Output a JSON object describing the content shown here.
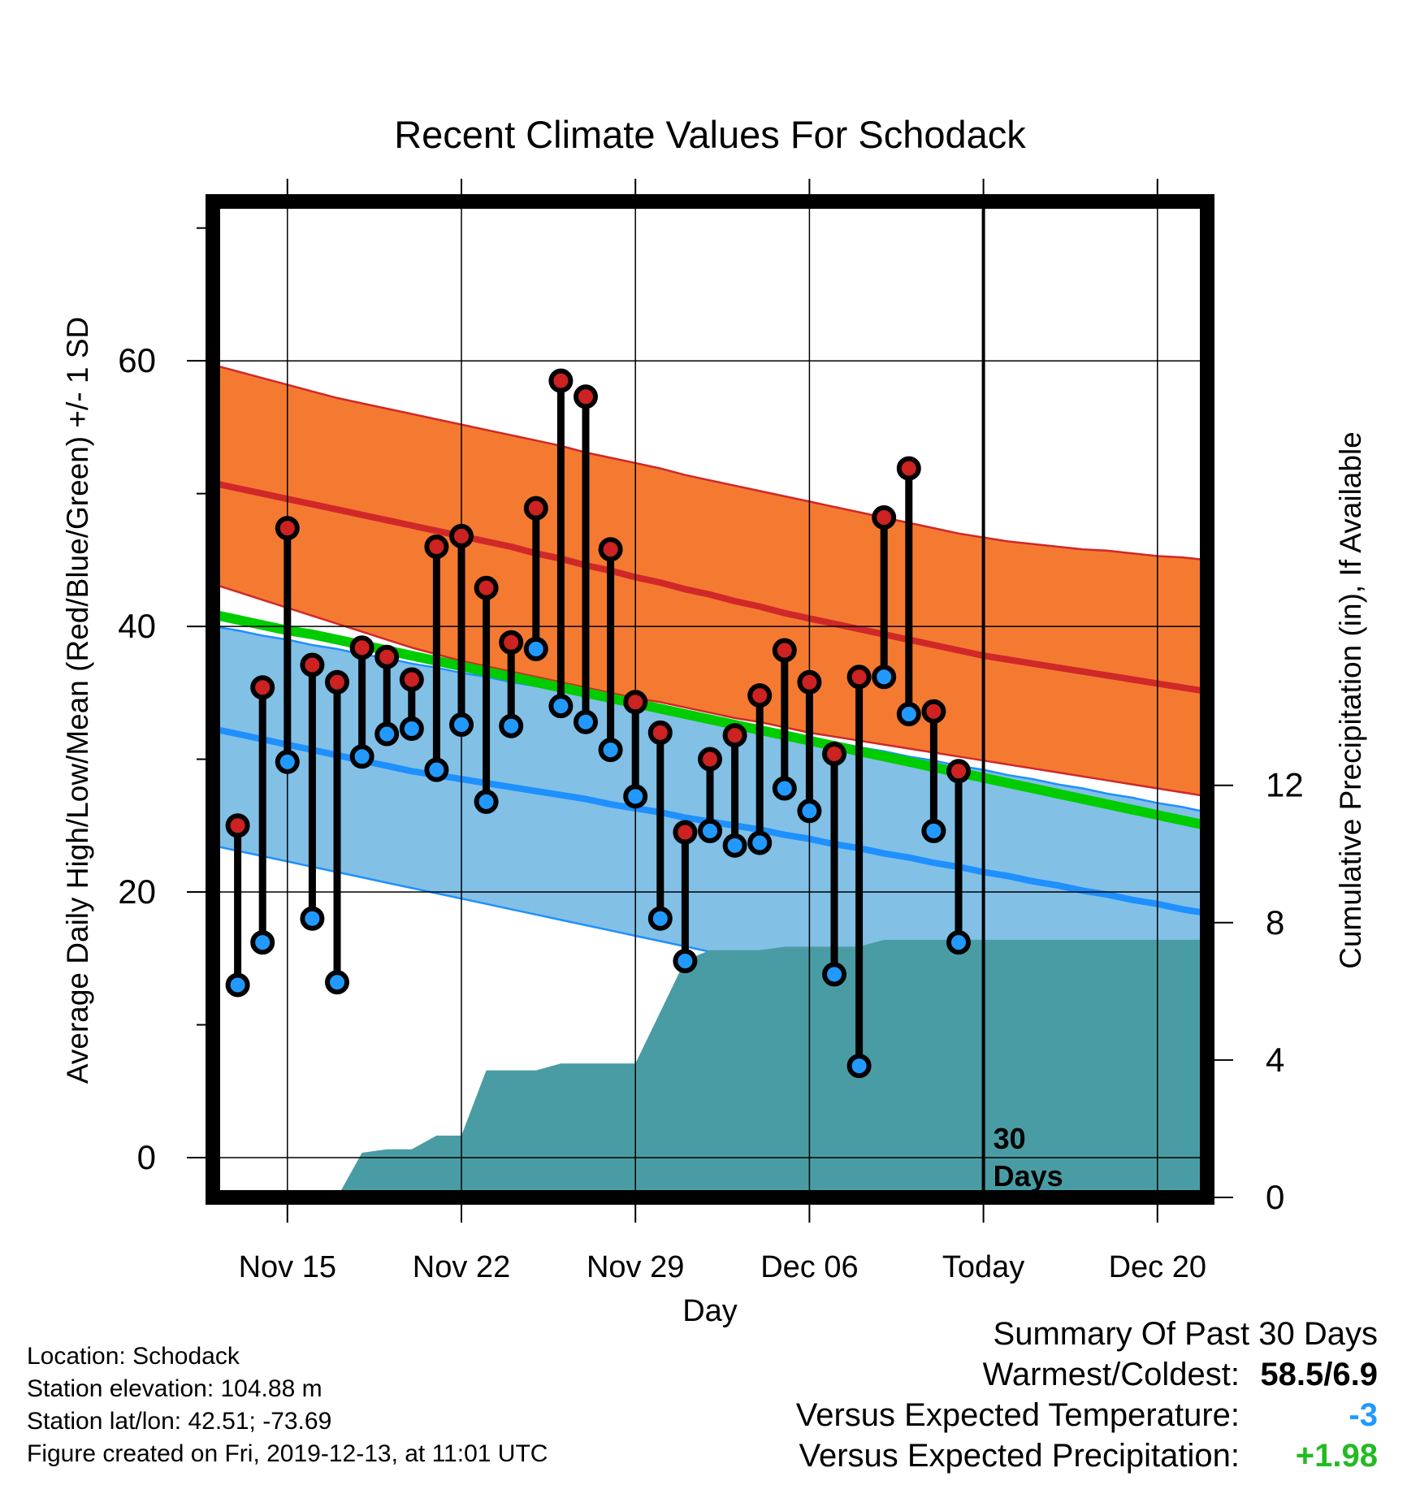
{
  "chart_data": {
    "type": "line",
    "title": "Recent Climate Values For Schodack",
    "xlabel": "Day",
    "ylabel": "Average Daily High/Low/Mean (Red/Blue/Green) +/- 1 SD",
    "y2label": "Cumulative Precipitation (in), If Available",
    "ylim": [
      -3,
      72
    ],
    "y2lim": [
      0,
      29
    ],
    "xlim": [
      "2019-11-12",
      "2019-12-22"
    ],
    "grid": true,
    "x_ticks": [
      "Nov 15",
      "Nov 22",
      "Nov 29",
      "Dec 06",
      "Today",
      "Dec 20"
    ],
    "y_ticks": [
      0,
      20,
      40,
      60
    ],
    "y2_ticks": [
      0,
      4,
      8,
      12
    ],
    "today_marker": {
      "date": "2019-12-13",
      "label_line1": "30",
      "label_line2": "Days"
    },
    "dates": [
      "2019-11-12",
      "2019-11-13",
      "2019-11-14",
      "2019-11-15",
      "2019-11-16",
      "2019-11-17",
      "2019-11-18",
      "2019-11-19",
      "2019-11-20",
      "2019-11-21",
      "2019-11-22",
      "2019-11-23",
      "2019-11-24",
      "2019-11-25",
      "2019-11-26",
      "2019-11-27",
      "2019-11-28",
      "2019-11-29",
      "2019-11-30",
      "2019-12-01",
      "2019-12-02",
      "2019-12-03",
      "2019-12-04",
      "2019-12-05",
      "2019-12-06",
      "2019-12-07",
      "2019-12-08",
      "2019-12-09",
      "2019-12-10",
      "2019-12-11",
      "2019-12-12",
      "2019-12-13",
      "2019-12-14",
      "2019-12-15",
      "2019-12-16",
      "2019-12-17",
      "2019-12-18",
      "2019-12-19",
      "2019-12-20",
      "2019-12-21",
      "2019-12-22"
    ],
    "normal_high": [
      50.8,
      50.4,
      50.0,
      49.6,
      49.2,
      48.8,
      48.4,
      48.0,
      47.6,
      47.2,
      46.8,
      46.4,
      46.0,
      45.5,
      45.1,
      44.6,
      44.2,
      43.7,
      43.3,
      42.8,
      42.4,
      41.9,
      41.5,
      41.0,
      40.6,
      40.2,
      39.8,
      39.4,
      39.0,
      38.6,
      38.2,
      37.8,
      37.5,
      37.2,
      36.9,
      36.6,
      36.3,
      36.0,
      35.7,
      35.4,
      35.1
    ],
    "normal_high_upper": [
      59.7,
      59.2,
      58.7,
      58.2,
      57.7,
      57.2,
      56.8,
      56.4,
      56.0,
      55.6,
      55.2,
      54.8,
      54.4,
      54.0,
      53.6,
      53.1,
      52.7,
      52.3,
      51.9,
      51.4,
      51.0,
      50.6,
      50.2,
      49.8,
      49.4,
      49.0,
      48.6,
      48.2,
      47.8,
      47.4,
      47.0,
      46.7,
      46.4,
      46.2,
      46.0,
      45.8,
      45.7,
      45.5,
      45.3,
      45.2,
      45.0
    ],
    "normal_high_lower": [
      43.2,
      42.6,
      42.0,
      41.4,
      40.8,
      40.2,
      39.6,
      39.0,
      38.4,
      37.9,
      37.4,
      37.0,
      36.6,
      36.2,
      35.8,
      35.4,
      35.0,
      34.6,
      34.3,
      33.9,
      33.5,
      33.1,
      32.8,
      32.4,
      32.0,
      31.7,
      31.4,
      31.1,
      30.8,
      30.5,
      30.2,
      29.9,
      29.6,
      29.3,
      29.0,
      28.7,
      28.4,
      28.1,
      27.8,
      27.5,
      27.2
    ],
    "normal_mean": [
      40.9,
      40.5,
      40.1,
      39.7,
      39.4,
      39.0,
      38.6,
      38.2,
      37.8,
      37.4,
      37.0,
      36.6,
      36.2,
      35.8,
      35.4,
      35.0,
      34.6,
      34.2,
      33.8,
      33.4,
      33.0,
      32.6,
      32.2,
      31.8,
      31.4,
      31.0,
      30.6,
      30.2,
      29.8,
      29.4,
      29.0,
      28.6,
      28.2,
      27.8,
      27.4,
      27.0,
      26.6,
      26.2,
      25.8,
      25.4,
      25.0
    ],
    "normal_low": [
      32.3,
      31.9,
      31.5,
      31.1,
      30.7,
      30.3,
      29.9,
      29.5,
      29.1,
      28.8,
      28.5,
      28.2,
      27.9,
      27.6,
      27.3,
      27.0,
      26.6,
      26.3,
      26.0,
      25.6,
      25.3,
      25.0,
      24.7,
      24.3,
      24.0,
      23.6,
      23.3,
      22.9,
      22.6,
      22.2,
      21.9,
      21.5,
      21.2,
      20.8,
      20.5,
      20.1,
      19.8,
      19.4,
      19.1,
      18.7,
      18.4
    ],
    "normal_low_upper": [
      40.0,
      39.7,
      39.3,
      39.0,
      38.6,
      38.3,
      37.9,
      37.6,
      37.2,
      36.9,
      36.5,
      36.2,
      35.8,
      35.5,
      35.1,
      34.8,
      34.4,
      34.1,
      33.7,
      33.4,
      33.0,
      32.7,
      32.3,
      32.0,
      31.6,
      31.3,
      30.9,
      30.6,
      30.2,
      29.9,
      29.5,
      29.2,
      28.8,
      28.5,
      28.1,
      27.8,
      27.4,
      27.1,
      26.7,
      26.4,
      26.0
    ],
    "normal_low_lower": [
      23.5,
      23.1,
      22.7,
      22.3,
      21.9,
      21.5,
      21.1,
      20.7,
      20.3,
      19.9,
      19.5,
      19.1,
      18.7,
      18.3,
      17.9,
      17.5,
      17.1,
      16.7,
      16.3,
      15.9,
      15.5,
      15.1,
      14.7,
      14.3,
      13.9,
      13.5,
      13.1,
      12.7,
      12.3,
      11.9,
      11.5,
      11.1,
      10.7,
      10.3,
      9.9,
      9.5,
      9.1,
      8.7,
      8.3,
      7.9,
      7.5
    ],
    "obs_dates": [
      "2019-11-13",
      "2019-11-14",
      "2019-11-15",
      "2019-11-16",
      "2019-11-17",
      "2019-11-18",
      "2019-11-19",
      "2019-11-20",
      "2019-11-21",
      "2019-11-22",
      "2019-11-23",
      "2019-11-24",
      "2019-11-25",
      "2019-11-26",
      "2019-11-27",
      "2019-11-28",
      "2019-11-29",
      "2019-11-30",
      "2019-12-01",
      "2019-12-02",
      "2019-12-03",
      "2019-12-04",
      "2019-12-05",
      "2019-12-06",
      "2019-12-07",
      "2019-12-08",
      "2019-12-09",
      "2019-12-10",
      "2019-12-11",
      "2019-12-12"
    ],
    "obs_high": [
      25.0,
      35.4,
      47.4,
      37.1,
      35.8,
      38.4,
      37.7,
      36.0,
      46.0,
      46.8,
      42.9,
      38.8,
      48.9,
      58.5,
      57.3,
      45.8,
      34.3,
      32.0,
      24.5,
      30.0,
      31.8,
      34.8,
      38.2,
      35.8,
      30.4,
      36.2,
      48.2,
      51.9,
      33.6,
      29.1
    ],
    "obs_low": [
      13.0,
      16.2,
      29.8,
      18.0,
      13.2,
      30.2,
      31.9,
      32.3,
      29.2,
      32.6,
      26.8,
      32.5,
      38.3,
      34.0,
      32.8,
      30.7,
      27.2,
      18.0,
      14.8,
      24.6,
      23.5,
      23.7,
      27.8,
      26.1,
      13.8,
      6.9,
      36.2,
      33.4,
      24.6,
      16.2
    ],
    "precip_dates": [
      "2019-11-12",
      "2019-11-17",
      "2019-11-18",
      "2019-11-19",
      "2019-11-20",
      "2019-11-21",
      "2019-11-22",
      "2019-11-23",
      "2019-11-24",
      "2019-11-25",
      "2019-11-26",
      "2019-11-27",
      "2019-11-28",
      "2019-11-29",
      "2019-11-30",
      "2019-12-01",
      "2019-12-02",
      "2019-12-03",
      "2019-12-04",
      "2019-12-05",
      "2019-12-06",
      "2019-12-07",
      "2019-12-08",
      "2019-12-09",
      "2019-12-10",
      "2019-12-22"
    ],
    "precip_cumulative": [
      0.0,
      0.0,
      1.3,
      1.4,
      1.4,
      1.8,
      1.8,
      3.7,
      3.7,
      3.7,
      3.9,
      3.9,
      3.9,
      3.9,
      5.4,
      6.9,
      7.2,
      7.2,
      7.2,
      7.3,
      7.3,
      7.3,
      7.3,
      7.5,
      7.5,
      7.5
    ]
  },
  "location_info": {
    "location": "Location: Schodack",
    "elevation": "Station elevation: 104.88 m",
    "latlon": "Station lat/lon: 42.51; -73.69",
    "created": "Figure created on Fri, 2019-12-13, at 11:01 UTC"
  },
  "summary": {
    "title": "Summary Of Past 30 Days",
    "warmest_coldest_label": "Warmest/Coldest:",
    "warmest_coldest_value": "58.5/6.9",
    "temp_label": "Versus Expected Temperature:",
    "temp_value": "-3",
    "precip_label": "Versus Expected Precipitation:",
    "precip_value": "+1.98"
  },
  "colors": {
    "high_band": "#f47a32",
    "high_line": "#d02828",
    "low_band": "#82c0e6",
    "low_line": "#1e90ff",
    "overlap": "#8b1a1a",
    "mean_line": "#00cc00",
    "precip_fill": "#4a9ca4",
    "high_dot": "#cc2222",
    "low_dot": "#2299ff",
    "temp_value": "#2299ff",
    "precip_value": "#22bb22"
  }
}
